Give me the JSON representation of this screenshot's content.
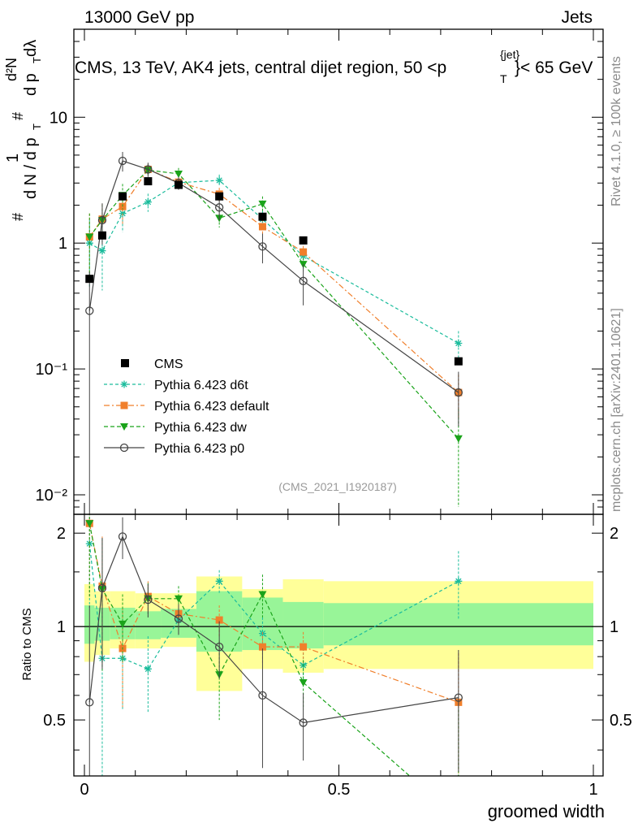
{
  "header": {
    "left": "13000 GeV pp",
    "right": "Jets"
  },
  "plot_title": "CMS, 13 TeV, AK4 jets, central dijet region, 50 <p",
  "plot_title_sup": "{jet}",
  "plot_title_sub": "T",
  "plot_title_end": "}< 65 GeV",
  "ylabel": {
    "hash1": "#",
    "one": "1",
    "dN": "d N / d p",
    "T": "T",
    "hash2": "#",
    "d2N": "d²N",
    "dpT": "d p",
    "T2": "T",
    "dlambda": "dλ"
  },
  "side_text_right_top": "Rivet 4.1.0, ≥ 100k events",
  "side_text_right_bottom": "mcplots.cern.ch [arXiv:2401.10621]",
  "watermark": "(CMS_2021_I1920187)",
  "ratio_ylabel": "Ratio to CMS",
  "xlabel": "groomed width",
  "main_ticks": {
    "y": [
      "10⁻²",
      "10⁻¹",
      "1",
      "10"
    ],
    "x": [
      "0",
      "0.5",
      "1"
    ]
  },
  "ratio_ticks": {
    "y": [
      "0.5",
      "1",
      "2"
    ]
  },
  "legend": [
    {
      "label": "CMS"
    },
    {
      "label": "Pythia 6.423 d6t"
    },
    {
      "label": "Pythia 6.423 default"
    },
    {
      "label": "Pythia 6.423 dw"
    },
    {
      "label": "Pythia 6.423 p0"
    }
  ],
  "colors": {
    "cms": "#000000",
    "d6t": "#1abc9c",
    "default": "#f07f2b",
    "dw": "#1aa31a",
    "p0": "#444444",
    "band_inner": "#98f598",
    "band_outer": "#ffff99"
  },
  "chart_data": {
    "type": "scatter",
    "xlabel": "groomed width",
    "ylabel": "1/dN/dpT d2N/dpT dlambda",
    "xlim": [
      0,
      1
    ],
    "ylim_main": [
      0.007,
      50
    ],
    "yscale_main": "log",
    "ylim_ratio": [
      0.33,
      2.3
    ],
    "yscale_ratio": "log",
    "bins": [
      [
        0.0,
        0.02
      ],
      [
        0.02,
        0.05
      ],
      [
        0.05,
        0.1
      ],
      [
        0.1,
        0.15
      ],
      [
        0.15,
        0.22
      ],
      [
        0.22,
        0.31
      ],
      [
        0.31,
        0.39
      ],
      [
        0.39,
        0.47
      ],
      [
        0.47,
        1.0
      ]
    ],
    "x": [
      0.01,
      0.035,
      0.075,
      0.125,
      0.185,
      0.265,
      0.35,
      0.43,
      0.735
    ],
    "cms": {
      "values": [
        0.52,
        1.15,
        2.35,
        3.1,
        2.9,
        2.35,
        1.62,
        1.05,
        0.115
      ],
      "band_inner": [
        [
          0.88,
          1.17
        ],
        [
          0.9,
          1.15
        ],
        [
          0.91,
          1.15
        ],
        [
          0.91,
          1.12
        ],
        [
          0.92,
          1.14
        ],
        [
          0.83,
          1.3
        ],
        [
          0.84,
          1.24
        ],
        [
          0.85,
          1.2
        ],
        [
          0.87,
          1.19
        ]
      ],
      "band_outer": [
        [
          0.77,
          1.37
        ],
        [
          0.81,
          1.3
        ],
        [
          0.85,
          1.3
        ],
        [
          0.85,
          1.28
        ],
        [
          0.86,
          1.28
        ],
        [
          0.62,
          1.45
        ],
        [
          0.73,
          1.32
        ],
        [
          0.71,
          1.42
        ],
        [
          0.73,
          1.4
        ]
      ]
    },
    "series": [
      {
        "name": "Pythia 6.423 d6t",
        "key": "d6t",
        "marker": "star",
        "dash": "4,3",
        "values": [
          1.0,
          0.87,
          1.72,
          2.12,
          3.02,
          3.15,
          1.55,
          0.79,
          0.16
        ],
        "errors": [
          0.55,
          0.45,
          0.5,
          0.35,
          0.3,
          0.35,
          0.25,
          0.1,
          0.04
        ],
        "ratio": [
          1.85,
          0.79,
          0.79,
          0.73,
          1.05,
          1.4,
          0.95,
          0.75,
          1.4
        ],
        "ratio_err": [
          0.7,
          0.55,
          0.25,
          0.2,
          0.1,
          0.12,
          0.12,
          0.1,
          0.35
        ]
      },
      {
        "name": "Pythia 6.423 default",
        "key": "default",
        "marker": "square",
        "dash": "7,3,2,3",
        "values": [
          1.12,
          1.55,
          1.95,
          3.85,
          3.05,
          2.45,
          1.35,
          0.85,
          0.065
        ],
        "errors": [
          0.6,
          0.5,
          0.55,
          0.4,
          0.35,
          0.3,
          0.2,
          0.1,
          0.025
        ],
        "ratio": [
          2.15,
          1.35,
          0.85,
          1.25,
          1.1,
          1.05,
          0.86,
          0.86,
          0.57
        ],
        "ratio_err": [
          0.9,
          0.6,
          0.3,
          0.15,
          0.1,
          0.12,
          0.1,
          0.1,
          0.25
        ]
      },
      {
        "name": "Pythia 6.423 dw",
        "key": "dw",
        "marker": "tri",
        "dash": "5,3",
        "values": [
          1.12,
          1.52,
          2.4,
          3.8,
          3.55,
          1.58,
          2.05,
          0.68,
          0.028
        ],
        "errors": [
          0.6,
          0.5,
          0.55,
          0.4,
          0.4,
          0.25,
          0.3,
          0.08,
          0.02
        ],
        "ratio": [
          2.15,
          1.32,
          1.02,
          1.23,
          1.23,
          0.7,
          1.27,
          0.66,
          0.24
        ],
        "ratio_err": [
          0.9,
          0.6,
          0.25,
          0.15,
          0.12,
          0.2,
          0.2,
          0.12,
          0.3
        ]
      },
      {
        "name": "Pythia 6.423 p0",
        "key": "p0",
        "marker": "circle",
        "dash": "",
        "values": [
          0.29,
          1.52,
          4.5,
          3.85,
          3.0,
          1.92,
          0.94,
          0.5,
          0.065
        ],
        "errors": [
          0.3,
          0.55,
          0.8,
          0.5,
          0.35,
          0.4,
          0.25,
          0.18,
          0.03
        ],
        "ratio": [
          0.57,
          1.33,
          1.95,
          1.22,
          1.06,
          0.86,
          0.6,
          0.49,
          0.59
        ],
        "ratio_err": [
          0.6,
          0.6,
          0.3,
          0.15,
          0.12,
          0.18,
          0.25,
          0.12,
          0.25
        ]
      }
    ]
  }
}
